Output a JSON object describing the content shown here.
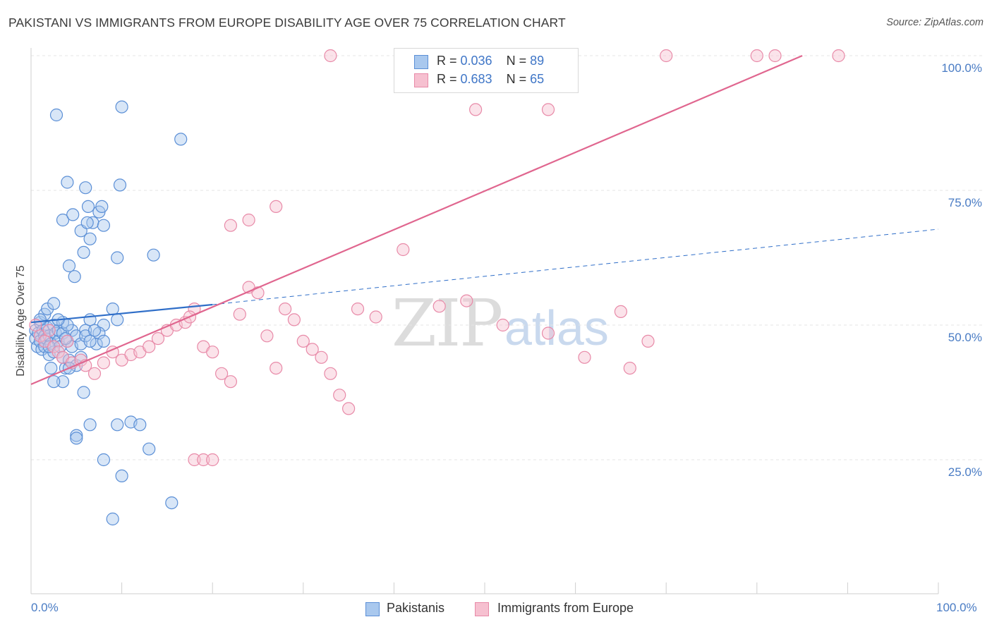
{
  "header": {
    "title": "PAKISTANI VS IMMIGRANTS FROM EUROPE DISABILITY AGE OVER 75 CORRELATION CHART",
    "source": "Source: ZipAtlas.com"
  },
  "watermark": {
    "zip": "ZIP",
    "atlas": "atlas"
  },
  "colors": {
    "blue_fill": "#a9c8ee",
    "blue_stroke": "#5b8fd6",
    "blue_line": "#2f6ec8",
    "pink_fill": "#f6c0d0",
    "pink_stroke": "#e88aa8",
    "pink_line": "#e0668f",
    "tick_text": "#4a7cc4",
    "grid": "#e6e6e6"
  },
  "legend": {
    "rows": [
      {
        "r_label": "R = ",
        "r_value": "0.036",
        "n_label": "N = ",
        "n_value": "89"
      },
      {
        "r_label": "R = ",
        "r_value": "0.683",
        "n_label": "N = ",
        "n_value": "65"
      }
    ]
  },
  "bottom_legend": {
    "series1": "Pakistanis",
    "series2": "Immigrants from Europe"
  },
  "chart_data": {
    "type": "scatter",
    "title": "PAKISTANI VS IMMIGRANTS FROM EUROPE DISABILITY AGE OVER 75 CORRELATION CHART",
    "xlabel": "",
    "ylabel": "Disability Age Over 75",
    "xlim": [
      0,
      100
    ],
    "ylim": [
      0,
      102
    ],
    "x_tick_labels": [
      "0.0%",
      "100.0%"
    ],
    "y_tick_values": [
      25,
      50,
      75,
      100
    ],
    "y_tick_labels": [
      "25.0%",
      "50.0%",
      "75.0%",
      "100.0%"
    ],
    "grid": true,
    "legend_position": "top-center",
    "series": [
      {
        "name": "Pakistanis",
        "r": 0.036,
        "n": 89,
        "trend": {
          "x": [
            0,
            20
          ],
          "y": [
            50.5,
            53.8
          ],
          "dashed_extension": {
            "x": [
              20,
              100
            ],
            "y": [
              53.8,
              67.8
            ]
          }
        },
        "points": [
          [
            0.5,
            49
          ],
          [
            0.5,
            47.5
          ],
          [
            0.7,
            46
          ],
          [
            0.8,
            48.5
          ],
          [
            1,
            50.5
          ],
          [
            1,
            47
          ],
          [
            1.2,
            45.5
          ],
          [
            1.3,
            49
          ],
          [
            1.5,
            48
          ],
          [
            1.5,
            46
          ],
          [
            1.7,
            47.5
          ],
          [
            1.8,
            49.5
          ],
          [
            2,
            48
          ],
          [
            2,
            44.5
          ],
          [
            2.2,
            46.5
          ],
          [
            2.5,
            50
          ],
          [
            2.5,
            45
          ],
          [
            2.7,
            48.5
          ],
          [
            3,
            47
          ],
          [
            3,
            49
          ],
          [
            3.2,
            46
          ],
          [
            3.5,
            48.5
          ],
          [
            3.5,
            44
          ],
          [
            3.8,
            42
          ],
          [
            4,
            47
          ],
          [
            4.2,
            43.5
          ],
          [
            4.5,
            49
          ],
          [
            4.5,
            46
          ],
          [
            5,
            48
          ],
          [
            5,
            42.5
          ],
          [
            1.5,
            52
          ],
          [
            1.8,
            53
          ],
          [
            2.5,
            54
          ],
          [
            3.5,
            50.5
          ],
          [
            4,
            50
          ],
          [
            3,
            51
          ],
          [
            1,
            51
          ],
          [
            6.5,
            51
          ],
          [
            6,
            49
          ],
          [
            5.5,
            46.5
          ],
          [
            2.2,
            42
          ],
          [
            3.5,
            39.5
          ],
          [
            2.5,
            39.5
          ],
          [
            4.2,
            42
          ],
          [
            5.8,
            37.5
          ],
          [
            7.2,
            46.5
          ],
          [
            9,
            53
          ],
          [
            8,
            50
          ],
          [
            7.5,
            48.5
          ],
          [
            9.5,
            51
          ],
          [
            3.5,
            69.5
          ],
          [
            4,
            76.5
          ],
          [
            4.6,
            70.5
          ],
          [
            5.5,
            67.5
          ],
          [
            6,
            75.5
          ],
          [
            6.3,
            72
          ],
          [
            5.8,
            63.5
          ],
          [
            6.5,
            66
          ],
          [
            6.8,
            69
          ],
          [
            7.5,
            71
          ],
          [
            4.2,
            61
          ],
          [
            4.8,
            59
          ],
          [
            7.8,
            72
          ],
          [
            6.2,
            69
          ],
          [
            8,
            68.5
          ],
          [
            9.5,
            62.5
          ],
          [
            9.8,
            76
          ],
          [
            13.5,
            63
          ],
          [
            2.8,
            89
          ],
          [
            10,
            90.5
          ],
          [
            16.5,
            84.5
          ],
          [
            5,
            29.5
          ],
          [
            5,
            29
          ],
          [
            6.5,
            31.5
          ],
          [
            8,
            25
          ],
          [
            9.5,
            31.5
          ],
          [
            11,
            32
          ],
          [
            12,
            31.5
          ],
          [
            10,
            22
          ],
          [
            9,
            14
          ],
          [
            13,
            27
          ],
          [
            15.5,
            17
          ],
          [
            6,
            48
          ],
          [
            8,
            47
          ],
          [
            2,
            46
          ],
          [
            3.8,
            47.5
          ],
          [
            7,
            49
          ],
          [
            6.5,
            47
          ],
          [
            5.5,
            44
          ]
        ]
      },
      {
        "name": "Immigrants from Europe",
        "r": 0.683,
        "n": 65,
        "trend": {
          "x": [
            0,
            85
          ],
          "y": [
            39,
            100
          ]
        },
        "points": [
          [
            0.5,
            50
          ],
          [
            1,
            48
          ],
          [
            1.5,
            47
          ],
          [
            2,
            49
          ],
          [
            2.5,
            46
          ],
          [
            3,
            45
          ],
          [
            3.5,
            44
          ],
          [
            4,
            47
          ],
          [
            4.5,
            43
          ],
          [
            5.5,
            43.5
          ],
          [
            6,
            42.5
          ],
          [
            7,
            41
          ],
          [
            8,
            43
          ],
          [
            9,
            45
          ],
          [
            10,
            43.5
          ],
          [
            11,
            44.5
          ],
          [
            12,
            45
          ],
          [
            13,
            46
          ],
          [
            14,
            47.5
          ],
          [
            15,
            49
          ],
          [
            16,
            50
          ],
          [
            17,
            50.5
          ],
          [
            18,
            53
          ],
          [
            17.5,
            51.5
          ],
          [
            19,
            46
          ],
          [
            20,
            45
          ],
          [
            21,
            41
          ],
          [
            22,
            39.5
          ],
          [
            23,
            52
          ],
          [
            24,
            57
          ],
          [
            25,
            56
          ],
          [
            26,
            48
          ],
          [
            27,
            42
          ],
          [
            28,
            53
          ],
          [
            29,
            51
          ],
          [
            30,
            47
          ],
          [
            31,
            45.5
          ],
          [
            32,
            44
          ],
          [
            33,
            41
          ],
          [
            34,
            37
          ],
          [
            35,
            34.5
          ],
          [
            18,
            25
          ],
          [
            19,
            25
          ],
          [
            20,
            25
          ],
          [
            22,
            68.5
          ],
          [
            24,
            69.5
          ],
          [
            27,
            72
          ],
          [
            36,
            53
          ],
          [
            38,
            51.5
          ],
          [
            48,
            54.5
          ],
          [
            52,
            50
          ],
          [
            57,
            48.5
          ],
          [
            61,
            44
          ],
          [
            65,
            52.5
          ],
          [
            68,
            47
          ],
          [
            70,
            100
          ],
          [
            80,
            100
          ],
          [
            82,
            100
          ],
          [
            89,
            100
          ],
          [
            57,
            90
          ],
          [
            49,
            90
          ],
          [
            33,
            100
          ],
          [
            41,
            64
          ],
          [
            45,
            53.5
          ],
          [
            66,
            42
          ]
        ]
      }
    ]
  }
}
